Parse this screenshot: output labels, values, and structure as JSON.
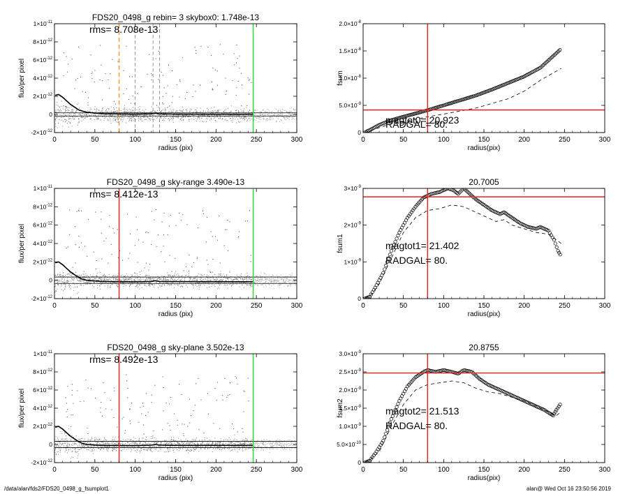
{
  "footer": {
    "left": "/data/alan/fds2/FDS20_0498_g_fsumplot1",
    "right": "alan@  Wed Oct 16 23:50:56 2019"
  },
  "colors": {
    "red": "#e8201c",
    "green": "#22dd22",
    "orange": "#f39a2b",
    "scatter": "#a9a9a9",
    "ink": "#000000"
  },
  "chart_data": [
    {
      "id": "profile-rebin",
      "type": "scatter",
      "title": "FDS20_0498_g rebin= 3    skybox0:  1.748e-13",
      "annotation": "rms= 8.708e-13",
      "xlabel": "radius (pix)",
      "ylabel": "flux/per pixel",
      "xlim": [
        0,
        300
      ],
      "ylim": [
        -2e-12,
        1e-11
      ],
      "xticks": [
        "0",
        "50",
        "100",
        "150",
        "200",
        "250",
        "300"
      ],
      "yticks": [
        {
          "v": -2e-12,
          "m": "-2×10",
          "e": "-12"
        },
        {
          "v": 0,
          "m": "0",
          "e": ""
        },
        {
          "v": 2e-12,
          "m": "2×10",
          "e": "-12"
        },
        {
          "v": 4e-12,
          "m": "4×10",
          "e": "-12"
        },
        {
          "v": 6e-12,
          "m": "6×10",
          "e": "-12"
        },
        {
          "v": 8e-12,
          "m": "8×10",
          "e": "-12"
        },
        {
          "v": 1e-11,
          "m": "1×10",
          "e": "-11"
        }
      ],
      "vlines": [
        {
          "x": 80,
          "color": "orange",
          "dash": true
        },
        {
          "x": 100,
          "color": "gray",
          "dash": true
        },
        {
          "x": 122,
          "color": "gray",
          "dash": true
        },
        {
          "x": 130,
          "color": "gray",
          "dash": true
        },
        {
          "x": 246,
          "color": "green",
          "dash": false
        }
      ],
      "hlines": [
        {
          "y": 1.75e-13
        },
        {
          "y": -1.75e-13
        }
      ],
      "mean_profile": [
        [
          1,
          2.1e-12
        ],
        [
          5,
          2.2e-12
        ],
        [
          10,
          1.9e-12
        ],
        [
          15,
          1.5e-12
        ],
        [
          20,
          1.1e-12
        ],
        [
          25,
          8e-13
        ],
        [
          30,
          5e-13
        ],
        [
          35,
          3.5e-13
        ],
        [
          40,
          2.5e-13
        ],
        [
          50,
          1.5e-13
        ],
        [
          60,
          8e-14
        ],
        [
          80,
          5e-14
        ],
        [
          100,
          3e-14
        ],
        [
          120,
          7e-14
        ],
        [
          125,
          1.5e-13
        ],
        [
          130,
          6e-14
        ],
        [
          150,
          3e-14
        ],
        [
          200,
          2e-14
        ],
        [
          246,
          2e-14
        ]
      ]
    },
    {
      "id": "fsum",
      "type": "line",
      "title": "",
      "annotation_lines": [
        "magtot0=  20.923",
        "RADGAL=     80."
      ],
      "xlabel": "radius(pix)",
      "ylabel": "fsum",
      "xlim": [
        0,
        300
      ],
      "ylim": [
        0,
        2e-08
      ],
      "xticks": [
        "0",
        "50",
        "100",
        "150",
        "200",
        "250",
        "300"
      ],
      "yticks": [
        {
          "v": 0,
          "m": "0",
          "e": ""
        },
        {
          "v": 5e-09,
          "m": "5.0×10",
          "e": "-9"
        },
        {
          "v": 1e-08,
          "m": "1.0×10",
          "e": "-8"
        },
        {
          "v": 1.5e-08,
          "m": "1.5×10",
          "e": "-8"
        },
        {
          "v": 2e-08,
          "m": "2.0×10",
          "e": "-8"
        }
      ],
      "vline": 80,
      "hline": 4.15e-09,
      "series": [
        {
          "style": "circles",
          "points": [
            [
              2,
              0
            ],
            [
              10,
              6e-10
            ],
            [
              20,
              1.4e-09
            ],
            [
              30,
              2e-09
            ],
            [
              40,
              2.5e-09
            ],
            [
              60,
              3.3e-09
            ],
            [
              80,
              4.1e-09
            ],
            [
              100,
              5e-09
            ],
            [
              120,
              5.9e-09
            ],
            [
              140,
              6.8e-09
            ],
            [
              160,
              7.9e-09
            ],
            [
              180,
              9.1e-09
            ],
            [
              200,
              1.03e-08
            ],
            [
              220,
              1.19e-08
            ],
            [
              246,
              1.54e-08
            ]
          ]
        },
        {
          "style": "dashed",
          "points": [
            [
              2,
              0
            ],
            [
              10,
              4e-10
            ],
            [
              30,
              1.4e-09
            ],
            [
              50,
              2e-09
            ],
            [
              80,
              2.9e-09
            ],
            [
              100,
              3.4e-09
            ],
            [
              140,
              4.5e-09
            ],
            [
              180,
              6.2e-09
            ],
            [
              200,
              7.6e-09
            ],
            [
              220,
              9.6e-09
            ],
            [
              246,
              1.18e-08
            ]
          ]
        }
      ]
    },
    {
      "id": "profile-sky-range",
      "type": "scatter",
      "title": "FDS20_0498_g sky-range  3.490e-13",
      "annotation": "rms= 8.412e-13",
      "xlabel": "radius (pix)",
      "ylabel": "flux/per pixel",
      "xlim": [
        0,
        300
      ],
      "ylim": [
        -2e-12,
        1e-11
      ],
      "xticks": [
        "0",
        "50",
        "100",
        "150",
        "200",
        "250",
        "300"
      ],
      "yticks": [
        {
          "v": -2e-12,
          "m": "-2×10",
          "e": "-12"
        },
        {
          "v": 0,
          "m": "0",
          "e": ""
        },
        {
          "v": 2e-12,
          "m": "2×10",
          "e": "-12"
        },
        {
          "v": 4e-12,
          "m": "4×10",
          "e": "-12"
        },
        {
          "v": 6e-12,
          "m": "6×10",
          "e": "-12"
        },
        {
          "v": 8e-12,
          "m": "8×10",
          "e": "-12"
        },
        {
          "v": 1e-11,
          "m": "1×10",
          "e": "-11"
        }
      ],
      "vlines": [
        {
          "x": 80,
          "color": "red",
          "dash": false
        },
        {
          "x": 246,
          "color": "green",
          "dash": false
        }
      ],
      "hlines": [
        {
          "y": 3.49e-13
        },
        {
          "y": -3.49e-13
        }
      ],
      "mean_profile": [
        [
          1,
          1.9e-12
        ],
        [
          5,
          2e-12
        ],
        [
          10,
          1.7e-12
        ],
        [
          15,
          1.3e-12
        ],
        [
          20,
          9e-13
        ],
        [
          25,
          6e-13
        ],
        [
          30,
          3e-13
        ],
        [
          35,
          1e-13
        ],
        [
          40,
          0
        ],
        [
          50,
          -8e-14
        ],
        [
          60,
          -1.3e-13
        ],
        [
          80,
          -1.6e-13
        ],
        [
          100,
          -1.7e-13
        ],
        [
          120,
          -1.3e-13
        ],
        [
          125,
          -5e-14
        ],
        [
          130,
          -1.3e-13
        ],
        [
          150,
          -1.5e-13
        ],
        [
          200,
          -1.6e-13
        ],
        [
          246,
          -1.6e-13
        ]
      ]
    },
    {
      "id": "fsum1",
      "type": "line",
      "title": "20.7005",
      "annotation_lines": [
        "magtot1=  21.402",
        "RADGAL=     80."
      ],
      "xlabel": "radius(pix)",
      "ylabel": "fsum1",
      "xlim": [
        0,
        300
      ],
      "ylim": [
        0,
        3e-09
      ],
      "xticks": [
        "0",
        "50",
        "100",
        "150",
        "200",
        "250",
        "300"
      ],
      "yticks": [
        {
          "v": 0,
          "m": "0",
          "e": ""
        },
        {
          "v": 1e-09,
          "m": "1×10",
          "e": "-9"
        },
        {
          "v": 2e-09,
          "m": "2×10",
          "e": "-9"
        },
        {
          "v": 3e-09,
          "m": "3×10",
          "e": "-9"
        }
      ],
      "vline": 80,
      "hline": 2.77e-09,
      "series": [
        {
          "style": "circles",
          "points": [
            [
              2,
              0
            ],
            [
              8,
              5e-11
            ],
            [
              15,
              3e-10
            ],
            [
              25,
              7e-10
            ],
            [
              35,
              1.3e-09
            ],
            [
              45,
              1.8e-09
            ],
            [
              55,
              2.2e-09
            ],
            [
              65,
              2.5e-09
            ],
            [
              75,
              2.75e-09
            ],
            [
              85,
              2.85e-09
            ],
            [
              95,
              2.9e-09
            ],
            [
              105,
              3e-09
            ],
            [
              112,
              2.95e-09
            ],
            [
              118,
              2.85e-09
            ],
            [
              125,
              3e-09
            ],
            [
              130,
              2.9e-09
            ],
            [
              140,
              2.7e-09
            ],
            [
              150,
              2.55e-09
            ],
            [
              160,
              2.4e-09
            ],
            [
              170,
              2.3e-09
            ],
            [
              175,
              2.35e-09
            ],
            [
              185,
              2.2e-09
            ],
            [
              195,
              2.05e-09
            ],
            [
              205,
              1.95e-09
            ],
            [
              215,
              1.9e-09
            ],
            [
              220,
              1.95e-09
            ],
            [
              230,
              1.85e-09
            ],
            [
              237,
              1.6e-09
            ],
            [
              242,
              1.3e-09
            ],
            [
              246,
              1.15e-09
            ]
          ]
        },
        {
          "style": "dashed",
          "points": [
            [
              2,
              0
            ],
            [
              10,
              1e-10
            ],
            [
              20,
              4e-10
            ],
            [
              35,
              1.1e-09
            ],
            [
              50,
              1.8e-09
            ],
            [
              65,
              2.2e-09
            ],
            [
              80,
              2.4e-09
            ],
            [
              95,
              2.45e-09
            ],
            [
              110,
              2.55e-09
            ],
            [
              125,
              2.5e-09
            ],
            [
              140,
              2.35e-09
            ],
            [
              155,
              2.2e-09
            ],
            [
              165,
              2.1e-09
            ],
            [
              175,
              2.15e-09
            ],
            [
              185,
              2e-09
            ],
            [
              200,
              1.9e-09
            ],
            [
              215,
              1.8e-09
            ],
            [
              230,
              1.75e-09
            ],
            [
              240,
              1.6e-09
            ],
            [
              246,
              1.5e-09
            ]
          ]
        }
      ]
    },
    {
      "id": "profile-sky-plane",
      "type": "scatter",
      "title": "FDS20_0498_g sky-plane  3.502e-13",
      "annotation": "rms= 8.492e-13",
      "xlabel": "radius (pix)",
      "ylabel": "flux/per pixel",
      "xlim": [
        0,
        300
      ],
      "ylim": [
        -2e-12,
        1e-11
      ],
      "xticks": [
        "0",
        "50",
        "100",
        "150",
        "200",
        "250",
        "300"
      ],
      "yticks": [
        {
          "v": -2e-12,
          "m": "-2×10",
          "e": "-12"
        },
        {
          "v": 0,
          "m": "0",
          "e": ""
        },
        {
          "v": 2e-12,
          "m": "2×10",
          "e": "-12"
        },
        {
          "v": 4e-12,
          "m": "4×10",
          "e": "-12"
        },
        {
          "v": 6e-12,
          "m": "6×10",
          "e": "-12"
        },
        {
          "v": 8e-12,
          "m": "8×10",
          "e": "-12"
        },
        {
          "v": 1e-11,
          "m": "1×10",
          "e": "-11"
        }
      ],
      "vlines": [
        {
          "x": 80,
          "color": "red",
          "dash": false
        },
        {
          "x": 246,
          "color": "green",
          "dash": false
        }
      ],
      "hlines": [
        {
          "y": 3.5e-13
        },
        {
          "y": -3.5e-13
        }
      ],
      "mean_profile": [
        [
          1,
          1.9e-12
        ],
        [
          5,
          2e-12
        ],
        [
          10,
          1.7e-12
        ],
        [
          15,
          1.3e-12
        ],
        [
          20,
          9e-13
        ],
        [
          25,
          6e-13
        ],
        [
          30,
          3e-13
        ],
        [
          35,
          1e-13
        ],
        [
          40,
          0
        ],
        [
          50,
          -6e-14
        ],
        [
          60,
          -1e-13
        ],
        [
          80,
          -1.2e-13
        ],
        [
          100,
          -1.2e-13
        ],
        [
          120,
          -8e-14
        ],
        [
          125,
          0
        ],
        [
          130,
          -8e-14
        ],
        [
          150,
          -1e-13
        ],
        [
          200,
          -1e-13
        ],
        [
          246,
          -1e-13
        ]
      ]
    },
    {
      "id": "fsum2",
      "type": "line",
      "title": "20.8755",
      "annotation_lines": [
        "magtot2=  21.513",
        "RADGAL=     80."
      ],
      "xlabel": "radius(pix)",
      "ylabel": "fsum2",
      "xlim": [
        0,
        300
      ],
      "ylim": [
        0,
        3e-09
      ],
      "xticks": [
        "0",
        "50",
        "100",
        "150",
        "200",
        "250",
        "300"
      ],
      "yticks": [
        {
          "v": 0,
          "m": "0",
          "e": ""
        },
        {
          "v": 5e-10,
          "m": "5.0×10",
          "e": "-10"
        },
        {
          "v": 1e-09,
          "m": "1.0×10",
          "e": "-9"
        },
        {
          "v": 1.5e-09,
          "m": "1.5×10",
          "e": "-9"
        },
        {
          "v": 2e-09,
          "m": "2.0×10",
          "e": "-9"
        },
        {
          "v": 2.5e-09,
          "m": "2.5×10",
          "e": "-9"
        },
        {
          "v": 3e-09,
          "m": "3.0×10",
          "e": "-9"
        }
      ],
      "vline": 80,
      "hline": 2.47e-09,
      "series": [
        {
          "style": "circles",
          "points": [
            [
              2,
              0
            ],
            [
              8,
              5e-11
            ],
            [
              15,
              2.5e-10
            ],
            [
              25,
              6e-10
            ],
            [
              35,
              1.2e-09
            ],
            [
              45,
              1.7e-09
            ],
            [
              55,
              2.1e-09
            ],
            [
              65,
              2.35e-09
            ],
            [
              75,
              2.5e-09
            ],
            [
              80,
              2.55e-09
            ],
            [
              90,
              2.5e-09
            ],
            [
              100,
              2.55e-09
            ],
            [
              110,
              2.5e-09
            ],
            [
              118,
              2.45e-09
            ],
            [
              125,
              2.55e-09
            ],
            [
              135,
              2.5e-09
            ],
            [
              145,
              2.3e-09
            ],
            [
              155,
              2.15e-09
            ],
            [
              165,
              2.05e-09
            ],
            [
              175,
              1.95e-09
            ],
            [
              185,
              1.85e-09
            ],
            [
              195,
              1.75e-09
            ],
            [
              205,
              1.65e-09
            ],
            [
              215,
              1.55e-09
            ],
            [
              225,
              1.45e-09
            ],
            [
              232,
              1.35e-09
            ],
            [
              236,
              1.3e-09
            ],
            [
              240,
              1.45e-09
            ],
            [
              246,
              1.65e-09
            ]
          ]
        },
        {
          "style": "dashed",
          "points": [
            [
              2,
              0
            ],
            [
              10,
              1e-10
            ],
            [
              20,
              3e-10
            ],
            [
              35,
              1e-09
            ],
            [
              50,
              1.6e-09
            ],
            [
              65,
              2e-09
            ],
            [
              80,
              2.15e-09
            ],
            [
              95,
              2.2e-09
            ],
            [
              110,
              2.25e-09
            ],
            [
              125,
              2.2e-09
            ],
            [
              140,
              2.05e-09
            ],
            [
              155,
              1.95e-09
            ],
            [
              170,
              1.9e-09
            ],
            [
              185,
              1.8e-09
            ],
            [
              200,
              1.7e-09
            ],
            [
              215,
              1.55e-09
            ],
            [
              230,
              1.4e-09
            ],
            [
              240,
              1.3e-09
            ],
            [
              246,
              1.4e-09
            ]
          ]
        }
      ]
    }
  ]
}
